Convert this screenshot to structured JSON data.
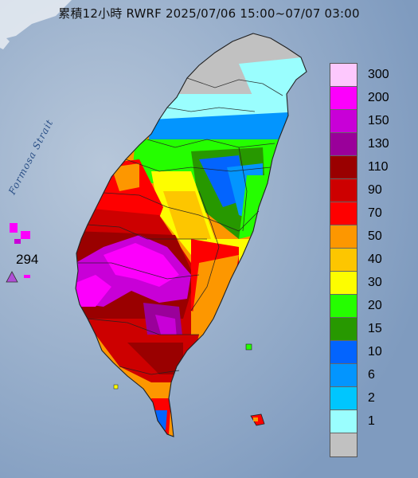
{
  "title": "累積12小時 RWRF 2025/07/06 15:00~07/07 03:00",
  "strait_label": "Formosa Strait",
  "station": {
    "value": "294",
    "marker_color": "#b04fd6"
  },
  "legend": {
    "items": [
      {
        "label": "300",
        "color": "#fdc8fd"
      },
      {
        "label": "200",
        "color": "#fc00fc"
      },
      {
        "label": "150",
        "color": "#c800d7"
      },
      {
        "label": "130",
        "color": "#9a009a"
      },
      {
        "label": "110",
        "color": "#9a0000"
      },
      {
        "label": "90",
        "color": "#cd0000"
      },
      {
        "label": "70",
        "color": "#fe0000"
      },
      {
        "label": "50",
        "color": "#fd9700"
      },
      {
        "label": "40",
        "color": "#fdc600"
      },
      {
        "label": "30",
        "color": "#fdfd00"
      },
      {
        "label": "20",
        "color": "#25fe00"
      },
      {
        "label": "15",
        "color": "#279800"
      },
      {
        "label": "10",
        "color": "#0364fe"
      },
      {
        "label": "6",
        "color": "#0395fe"
      },
      {
        "label": "2",
        "color": "#00c6fe"
      },
      {
        "label": "1",
        "color": "#9afefe"
      },
      {
        "label": "",
        "color": "#c1c1c1"
      }
    ]
  },
  "colors": {
    "sea": "#8fa9c6",
    "land_no_rain": "#c1c1c1",
    "borders": "#222222"
  }
}
